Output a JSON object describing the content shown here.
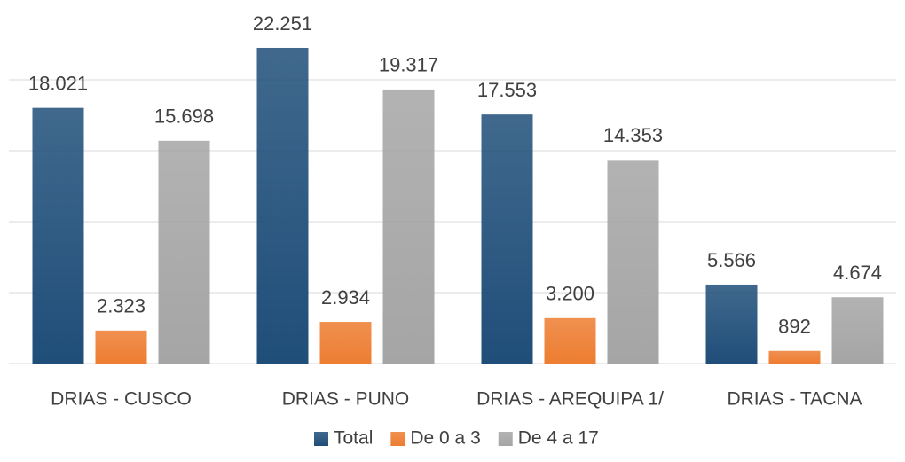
{
  "chart_data": {
    "type": "bar",
    "categories": [
      "DRIAS - CUSCO",
      "DRIAS - PUNO",
      "DRIAS - AREQUIPA 1/",
      "DRIAS - TACNA"
    ],
    "series": [
      {
        "name": "Total",
        "color": "#1f4e79",
        "values": [
          18021,
          22251,
          17553,
          5566
        ],
        "value_labels": [
          "18.021",
          "22.251",
          "17.553",
          "5.566"
        ]
      },
      {
        "name": "De 0 a 3",
        "color": "#ed7d31",
        "values": [
          2323,
          2934,
          3200,
          892
        ],
        "value_labels": [
          "2.323",
          "2.934",
          "3.200",
          "892"
        ]
      },
      {
        "name": "De 4 a 17",
        "color": "#a5a5a5",
        "values": [
          15698,
          19317,
          14353,
          4674
        ],
        "value_labels": [
          "15.698",
          "19.317",
          "14.353",
          "4.674"
        ]
      }
    ],
    "ylim": [
      0,
      25000
    ],
    "yticks": [
      0,
      5000,
      10000,
      15000,
      20000
    ],
    "grid": true,
    "legend": "bottom"
  }
}
